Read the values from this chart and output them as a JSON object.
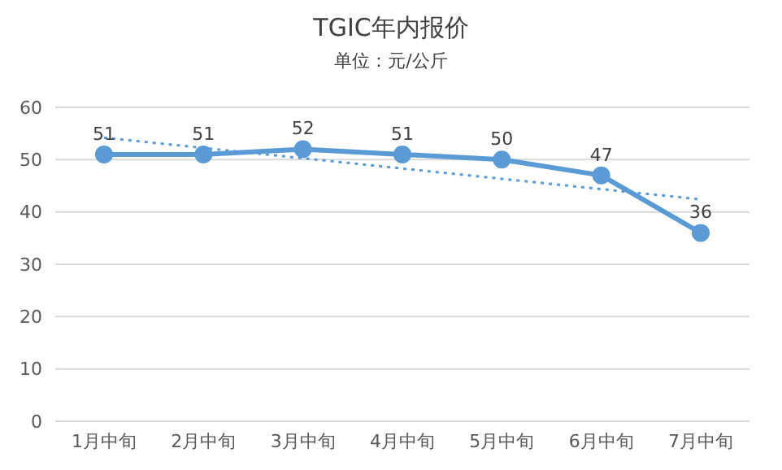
{
  "chart_data": {
    "type": "line",
    "title": "TGIC年内报价",
    "subtitle": "单位：元/公斤",
    "categories": [
      "1月中旬",
      "2月中旬",
      "3月中旬",
      "4月中旬",
      "5月中旬",
      "6月中旬",
      "7月中旬"
    ],
    "series": [
      {
        "color": "#5b9bd5",
        "values": [
          51,
          51,
          52,
          51,
          50,
          47,
          36
        ],
        "value_labels": [
          "51",
          "51",
          "52",
          "51",
          "50",
          "47",
          "36"
        ],
        "marker": "circle",
        "line_style": "solid"
      },
      {
        "type": "line",
        "color": "#5b9bd5",
        "x": [
          "1月中旬",
          "7月中旬"
        ],
        "values": [
          54.2,
          42.4
        ],
        "marker": "none",
        "line_style": "dotted"
      }
    ],
    "ylim": [
      0,
      60
    ],
    "yticks": [
      0,
      10,
      20,
      30,
      40,
      50,
      60
    ],
    "grid": "y",
    "legend": false
  }
}
